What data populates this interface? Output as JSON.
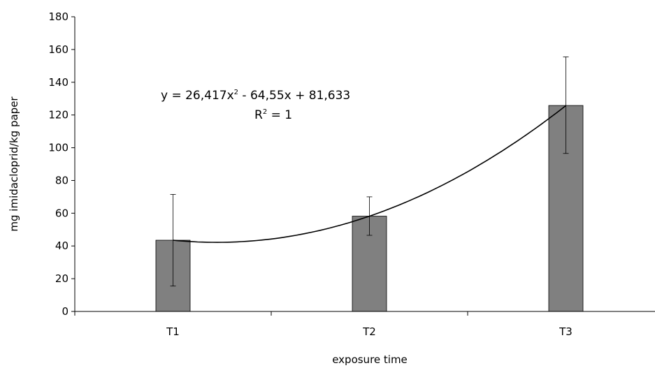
{
  "chart_data": {
    "type": "bar",
    "categories": [
      "T1",
      "T2",
      "T3"
    ],
    "values": [
      43.5,
      58.2,
      125.8
    ],
    "error_low": [
      15.5,
      46.5,
      96.5
    ],
    "error_high": [
      71.5,
      70.0,
      155.5
    ],
    "ylim": [
      0,
      180
    ],
    "yticks": [
      0,
      20,
      40,
      60,
      80,
      100,
      120,
      140,
      160,
      180
    ],
    "xlabel": "exposure time",
    "ylabel": "mg imidacloprid/kg paper",
    "bar_color": "#808080",
    "grid": false,
    "trendline": {
      "type": "polynomial",
      "order": 2,
      "coefficients": [
        26.417,
        -64.55,
        81.633
      ],
      "equation_prefix": "y = 26,417x",
      "equation_exponent": "2",
      "equation_suffix": " - 64,55x + 81,633",
      "r2_prefix": "R",
      "r2_exponent": "2",
      "r2_suffix": " = 1"
    }
  }
}
